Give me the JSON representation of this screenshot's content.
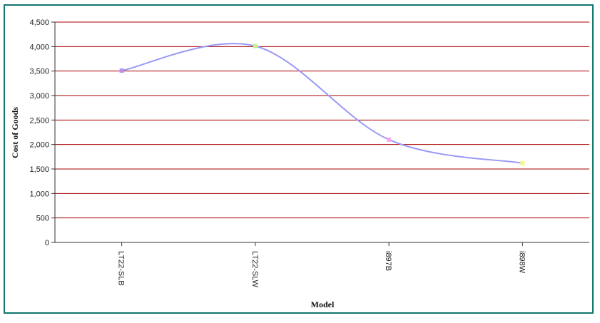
{
  "chart_data": {
    "type": "line",
    "title": "",
    "xlabel": "Model",
    "ylabel": "Cost of Goods",
    "categories": [
      "LT22-SLB",
      "LT22-SLW",
      "i897B",
      "i898W"
    ],
    "series": [
      {
        "values": [
          3510,
          4010,
          2100,
          1620
        ],
        "color": "#9999f5",
        "marker_colors": [
          "#b98ff0",
          "#c7f28a",
          "#f5a8f0",
          "#f7f78a"
        ]
      }
    ],
    "ylim": [
      0,
      4500
    ],
    "yticks": [
      0,
      500,
      1000,
      1500,
      2000,
      2500,
      3000,
      3500,
      4000,
      4500
    ],
    "ytick_labels": [
      "0",
      "500",
      "1,000",
      "1,500",
      "2,000",
      "2,500",
      "3,000",
      "3,500",
      "4,000",
      "4,500"
    ],
    "grid": true,
    "grid_color": "#aa0000",
    "legend": false
  },
  "colors": {
    "frame_border": "#0f766e",
    "axis": "#333333"
  }
}
